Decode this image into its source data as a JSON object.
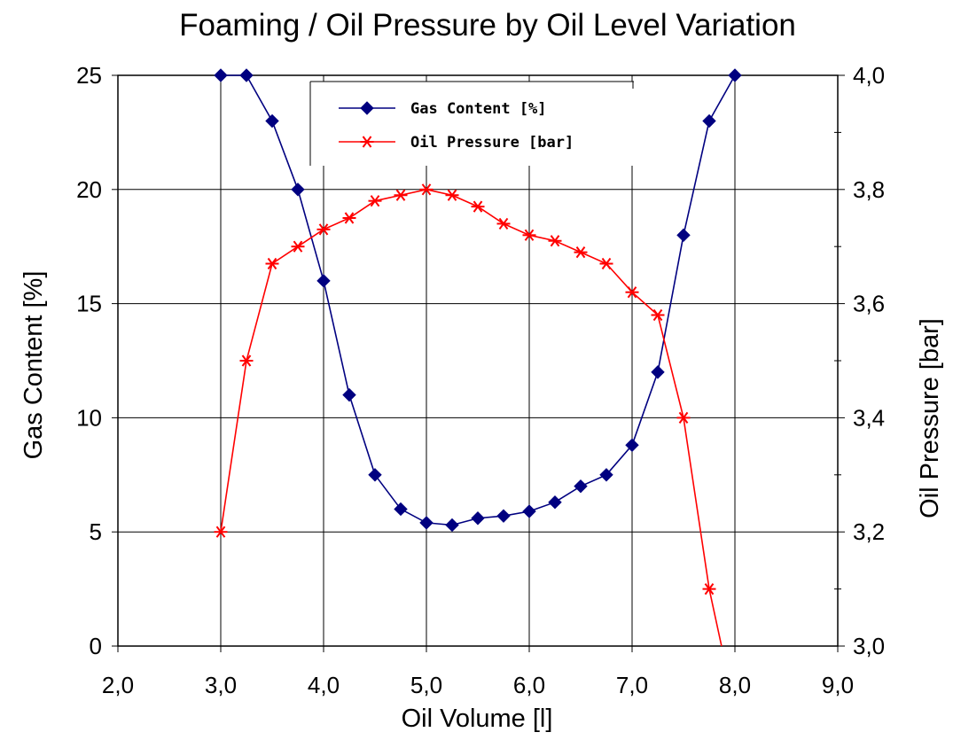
{
  "chart_data": {
    "type": "line",
    "title": "Foaming / Oil Pressure by Oil Level Variation",
    "xlabel": "Oil Volume [l]",
    "ylabel": "Gas Content [%]",
    "y2label": "Oil Pressure [bar]",
    "xlim": [
      2.0,
      9.0
    ],
    "ylim": [
      0,
      25
    ],
    "y2lim": [
      3.0,
      4.0
    ],
    "x_ticks": [
      "2,0",
      "3,0",
      "4,0",
      "5,0",
      "6,0",
      "7,0",
      "8,0",
      "9,0"
    ],
    "y_ticks": [
      "0",
      "5",
      "10",
      "15",
      "20",
      "25"
    ],
    "y2_ticks": [
      "3,0",
      "3,2",
      "3,4",
      "3,6",
      "3,8",
      "4,0"
    ],
    "grid": true,
    "legend_position": "top-center",
    "series": [
      {
        "name": "Gas Content [%]",
        "axis": "left",
        "color": "#000080",
        "marker": "diamond",
        "x": [
          3.0,
          3.25,
          3.5,
          3.75,
          4.0,
          4.25,
          4.5,
          4.75,
          5.0,
          5.25,
          5.5,
          5.75,
          6.0,
          6.25,
          6.5,
          6.75,
          7.0,
          7.25,
          7.5,
          7.75,
          8.0
        ],
        "values": [
          25,
          25,
          23,
          20,
          16,
          11,
          7.5,
          6,
          5.4,
          5.3,
          5.6,
          5.7,
          5.9,
          6.3,
          7,
          7.5,
          8.8,
          12,
          18,
          23,
          25
        ]
      },
      {
        "name": "Oil Pressure [bar]",
        "axis": "right",
        "color": "#ff0000",
        "marker": "asterisk",
        "x": [
          3.0,
          3.25,
          3.5,
          3.75,
          4.0,
          4.25,
          4.5,
          4.75,
          5.0,
          5.25,
          5.5,
          5.75,
          6.0,
          6.25,
          6.5,
          6.75,
          7.0,
          7.25,
          7.5,
          7.75
        ],
        "values": [
          3.2,
          3.5,
          3.67,
          3.7,
          3.73,
          3.75,
          3.78,
          3.79,
          3.8,
          3.79,
          3.77,
          3.74,
          3.72,
          3.71,
          3.69,
          3.67,
          3.62,
          3.58,
          3.4,
          3.1
        ],
        "tail_to_axis_x": 7.87
      }
    ]
  }
}
